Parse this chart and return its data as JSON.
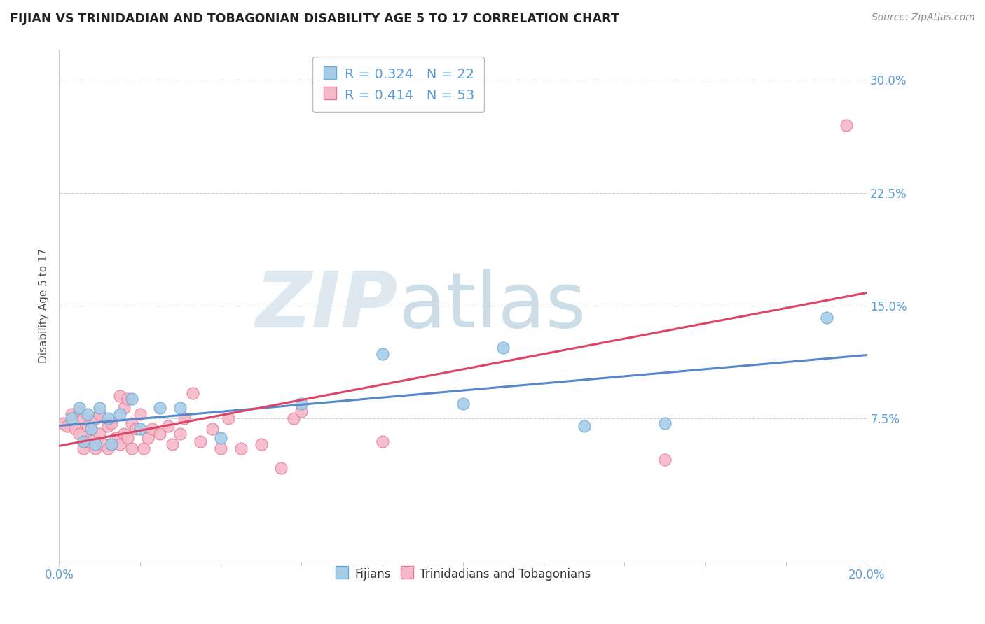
{
  "title": "FIJIAN VS TRINIDADIAN AND TOBAGONIAN DISABILITY AGE 5 TO 17 CORRELATION CHART",
  "source": "Source: ZipAtlas.com",
  "ylabel": "Disability Age 5 to 17",
  "xlim": [
    0.0,
    0.2
  ],
  "ylim": [
    -0.02,
    0.32
  ],
  "yticks": [
    0.075,
    0.15,
    0.225,
    0.3
  ],
  "ytick_labels": [
    "7.5%",
    "15.0%",
    "22.5%",
    "30.0%"
  ],
  "xtick_labels": [
    "0.0%",
    "20.0%"
  ],
  "xtick_positions": [
    0.0,
    0.2
  ],
  "fijian_R": "0.324",
  "fijian_N": "22",
  "trini_R": "0.414",
  "trini_N": "53",
  "fijian_color": "#a8cce8",
  "trini_color": "#f5b8c8",
  "fijian_edge_color": "#6aaad4",
  "trini_edge_color": "#e87898",
  "fijian_line_color": "#5588cc",
  "trini_line_color": "#dd4466",
  "background_color": "#ffffff",
  "grid_color": "#cccccc",
  "title_color": "#222222",
  "source_color": "#888888",
  "tick_color": "#5b9bd5",
  "ylabel_color": "#555555",
  "legend_text_color": "#5b9bd5",
  "watermark_zip_color": "#dde8f0",
  "watermark_atlas_color": "#ccdde8",
  "fijian_x": [
    0.003,
    0.005,
    0.006,
    0.007,
    0.008,
    0.009,
    0.01,
    0.012,
    0.013,
    0.015,
    0.018,
    0.02,
    0.025,
    0.03,
    0.04,
    0.06,
    0.08,
    0.1,
    0.11,
    0.13,
    0.15,
    0.19
  ],
  "fijian_y": [
    0.075,
    0.082,
    0.06,
    0.078,
    0.068,
    0.058,
    0.082,
    0.075,
    0.058,
    0.078,
    0.088,
    0.068,
    0.082,
    0.082,
    0.062,
    0.085,
    0.118,
    0.085,
    0.122,
    0.07,
    0.072,
    0.142
  ],
  "trini_x": [
    0.001,
    0.002,
    0.003,
    0.004,
    0.005,
    0.005,
    0.006,
    0.006,
    0.007,
    0.007,
    0.008,
    0.008,
    0.009,
    0.009,
    0.01,
    0.01,
    0.011,
    0.012,
    0.012,
    0.013,
    0.013,
    0.014,
    0.015,
    0.015,
    0.016,
    0.016,
    0.017,
    0.017,
    0.018,
    0.018,
    0.019,
    0.02,
    0.021,
    0.022,
    0.023,
    0.025,
    0.027,
    0.028,
    0.03,
    0.031,
    0.033,
    0.035,
    0.038,
    0.04,
    0.042,
    0.045,
    0.05,
    0.055,
    0.058,
    0.06,
    0.08,
    0.15,
    0.195
  ],
  "trini_y": [
    0.072,
    0.07,
    0.078,
    0.068,
    0.065,
    0.08,
    0.055,
    0.075,
    0.06,
    0.07,
    0.062,
    0.068,
    0.055,
    0.075,
    0.065,
    0.078,
    0.058,
    0.055,
    0.07,
    0.058,
    0.072,
    0.062,
    0.058,
    0.09,
    0.065,
    0.082,
    0.062,
    0.088,
    0.055,
    0.072,
    0.068,
    0.078,
    0.055,
    0.062,
    0.068,
    0.065,
    0.07,
    0.058,
    0.065,
    0.075,
    0.092,
    0.06,
    0.068,
    0.055,
    0.075,
    0.055,
    0.058,
    0.042,
    0.075,
    0.08,
    0.06,
    0.048,
    0.27
  ]
}
